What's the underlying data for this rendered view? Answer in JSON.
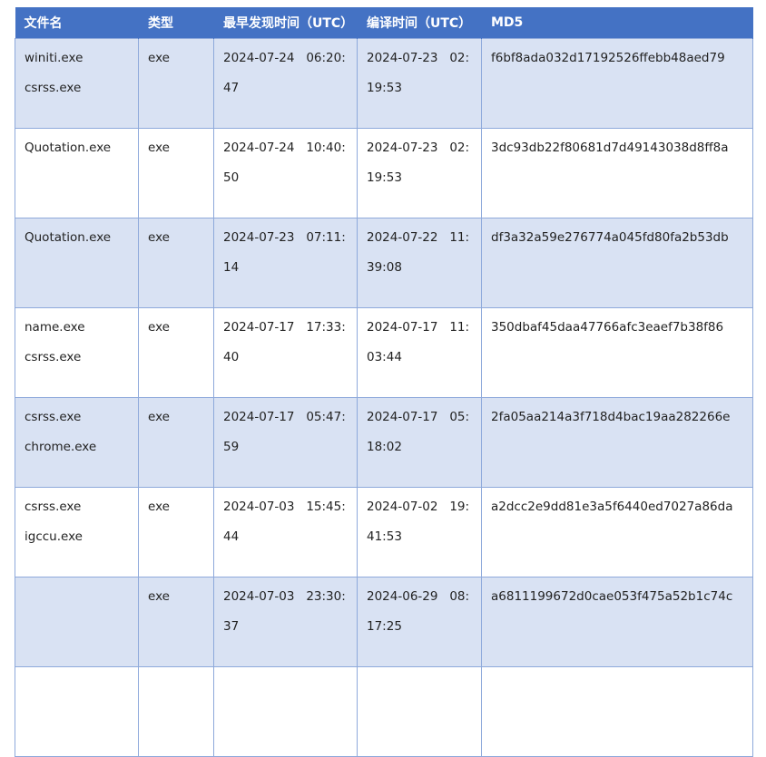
{
  "headers": [
    "文件名",
    "类型",
    "最早发现时间（UTC）",
    "编译时间（UTC）",
    "MD5"
  ],
  "rows": [
    {
      "files": [
        "winiti.exe",
        "csrss.exe"
      ],
      "type": "exe",
      "first_seen": "2024-07-24   06:20:47",
      "compiled": "2024-07-23   02:19:53",
      "md5": "f6bf8ada032d17192526ffebb48aed79"
    },
    {
      "files": [
        "Quotation.exe"
      ],
      "type": "exe",
      "first_seen": "2024-07-24   10:40:50",
      "compiled": "2024-07-23   02:19:53",
      "md5": "3dc93db22f80681d7d49143038d8ff8a"
    },
    {
      "files": [
        "Quotation.exe"
      ],
      "type": "exe",
      "first_seen": "2024-07-23   07:11:14",
      "compiled": "2024-07-22   11:39:08",
      "md5": "df3a32a59e276774a045fd80fa2b53db"
    },
    {
      "files": [
        "name.exe",
        "csrss.exe"
      ],
      "type": "exe",
      "first_seen": "2024-07-17   17:33:40",
      "compiled": "2024-07-17   11:03:44",
      "md5": "350dbaf45daa47766afc3eaef7b38f86"
    },
    {
      "files": [
        "csrss.exe",
        "chrome.exe"
      ],
      "type": "exe",
      "first_seen": "2024-07-17   05:47:59",
      "compiled": "2024-07-17   05:18:02",
      "md5": "2fa05aa214a3f718d4bac19aa282266e"
    },
    {
      "files": [
        "csrss.exe",
        "igccu.exe"
      ],
      "type": "exe",
      "first_seen": "2024-07-03   15:45:44",
      "compiled": "2024-07-02   19:41:53",
      "md5": "a2dcc2e9dd81e3a5f6440ed7027a86da"
    },
    {
      "files": [],
      "type": "exe",
      "first_seen": "2024-07-03   23:30:37",
      "compiled": "2024-06-29   08:17:25",
      "md5": "a6811199672d0cae053f475a52b1c74c"
    },
    {
      "files": [],
      "type": "",
      "first_seen": "",
      "compiled": "",
      "md5": ""
    }
  ]
}
